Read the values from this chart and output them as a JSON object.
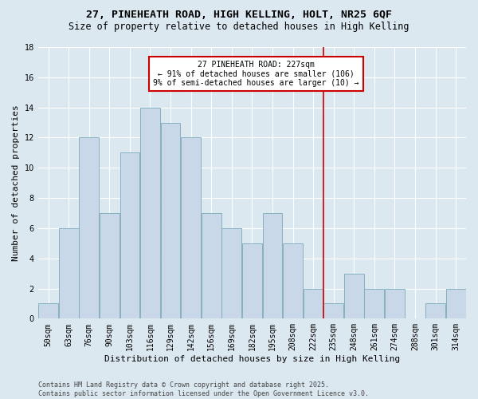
{
  "title_line1": "27, PINEHEATH ROAD, HIGH KELLING, HOLT, NR25 6QF",
  "title_line2": "Size of property relative to detached houses in High Kelling",
  "xlabel": "Distribution of detached houses by size in High Kelling",
  "ylabel": "Number of detached properties",
  "categories": [
    "50sqm",
    "63sqm",
    "76sqm",
    "90sqm",
    "103sqm",
    "116sqm",
    "129sqm",
    "142sqm",
    "156sqm",
    "169sqm",
    "182sqm",
    "195sqm",
    "208sqm",
    "222sqm",
    "235sqm",
    "248sqm",
    "261sqm",
    "274sqm",
    "288sqm",
    "301sqm",
    "314sqm"
  ],
  "values": [
    1,
    6,
    12,
    7,
    11,
    14,
    13,
    12,
    7,
    6,
    5,
    7,
    5,
    2,
    1,
    3,
    2,
    2,
    0,
    1,
    2
  ],
  "bar_color": "#c8d8e8",
  "bar_edge_color": "#7aaabb",
  "vline_x": 13.5,
  "vline_color": "#cc0000",
  "annotation_text": "27 PINEHEATH ROAD: 227sqm\n← 91% of detached houses are smaller (106)\n9% of semi-detached houses are larger (10) →",
  "annotation_box_color": "#ffffff",
  "annotation_box_edgecolor": "#cc0000",
  "ylim": [
    0,
    18
  ],
  "yticks": [
    0,
    2,
    4,
    6,
    8,
    10,
    12,
    14,
    16,
    18
  ],
  "background_color": "#dce8f0",
  "grid_color": "#ffffff",
  "footer_text": "Contains HM Land Registry data © Crown copyright and database right 2025.\nContains public sector information licensed under the Open Government Licence v3.0.",
  "title_fontsize": 9.5,
  "subtitle_fontsize": 8.5,
  "xlabel_fontsize": 8,
  "ylabel_fontsize": 8,
  "tick_fontsize": 7,
  "annotation_fontsize": 7,
  "footer_fontsize": 6
}
